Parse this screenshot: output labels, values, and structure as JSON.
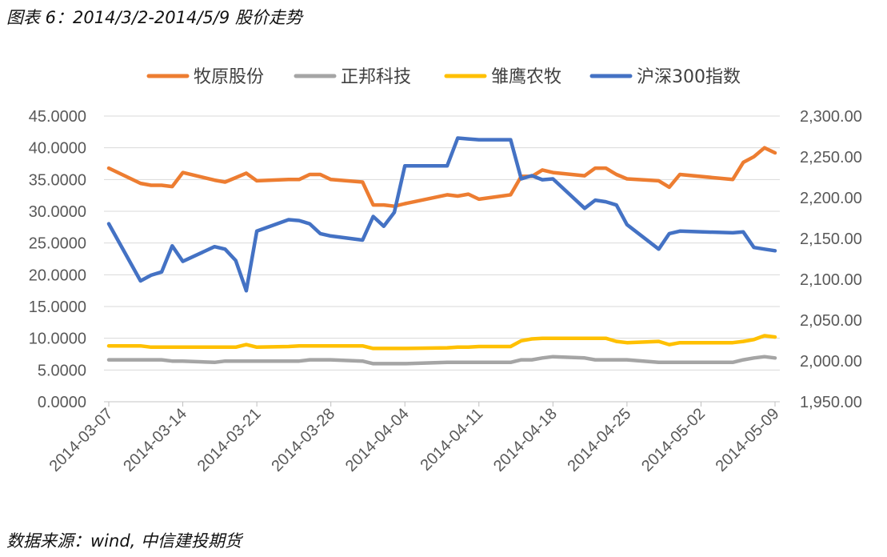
{
  "caption": "图表 6：2014/3/2-2014/5/9 股价走势",
  "source": "数据来源：wind,  中信建投期货",
  "chart_data": {
    "type": "line",
    "title": "",
    "xlabel": "",
    "ylabel": "",
    "y2label": "",
    "legend_position": "top",
    "grid": true,
    "ylim": [
      0,
      45
    ],
    "y2lim": [
      1950,
      2300
    ],
    "y_ticks": [
      "0.0000",
      "5.0000",
      "10.0000",
      "15.0000",
      "20.0000",
      "25.0000",
      "30.0000",
      "35.0000",
      "40.0000",
      "45.0000"
    ],
    "y2_ticks": [
      "1,950.00",
      "2,000.00",
      "2,050.00",
      "2,100.00",
      "2,150.00",
      "2,200.00",
      "2,250.00",
      "2,300.00"
    ],
    "x_ticks": [
      "2014-03-07",
      "2014-03-14",
      "2014-03-21",
      "2014-03-28",
      "2014-04-04",
      "2014-04-11",
      "2014-04-18",
      "2014-04-25",
      "2014-05-02",
      "2014-05-09"
    ],
    "dates": [
      "2014-03-07",
      "2014-03-10",
      "2014-03-11",
      "2014-03-12",
      "2014-03-13",
      "2014-03-14",
      "2014-03-17",
      "2014-03-18",
      "2014-03-19",
      "2014-03-20",
      "2014-03-21",
      "2014-03-24",
      "2014-03-25",
      "2014-03-26",
      "2014-03-27",
      "2014-03-28",
      "2014-03-31",
      "2014-04-01",
      "2014-04-02",
      "2014-04-03",
      "2014-04-04",
      "2014-04-08",
      "2014-04-09",
      "2014-04-10",
      "2014-04-11",
      "2014-04-14",
      "2014-04-15",
      "2014-04-16",
      "2014-04-17",
      "2014-04-18",
      "2014-04-21",
      "2014-04-22",
      "2014-04-23",
      "2014-04-24",
      "2014-04-25",
      "2014-04-28",
      "2014-04-29",
      "2014-04-30",
      "2014-05-05",
      "2014-05-06",
      "2014-05-07",
      "2014-05-08",
      "2014-05-09"
    ],
    "series": [
      {
        "name": "牧原股份",
        "color": "#ED7D31",
        "axis": "left",
        "values": [
          36.8,
          34.4,
          34.1,
          34.1,
          33.9,
          36.1,
          34.9,
          34.6,
          35.3,
          36.0,
          34.8,
          35.0,
          35.0,
          35.8,
          35.8,
          35.0,
          34.6,
          31.0,
          31.0,
          30.8,
          31.2,
          32.6,
          32.4,
          32.7,
          31.9,
          32.6,
          35.5,
          35.5,
          36.5,
          36.1,
          35.6,
          36.8,
          36.8,
          35.8,
          35.1,
          34.8,
          33.8,
          35.8,
          35.0,
          37.7,
          38.6,
          40.0,
          39.2
        ]
      },
      {
        "name": "正邦科技",
        "color": "#A5A5A5",
        "axis": "left",
        "values": [
          6.6,
          6.6,
          6.6,
          6.6,
          6.4,
          6.4,
          6.2,
          6.4,
          6.4,
          6.4,
          6.4,
          6.4,
          6.4,
          6.6,
          6.6,
          6.6,
          6.4,
          6.0,
          6.0,
          6.0,
          6.0,
          6.2,
          6.2,
          6.2,
          6.2,
          6.2,
          6.6,
          6.6,
          6.9,
          7.1,
          6.9,
          6.6,
          6.6,
          6.6,
          6.6,
          6.2,
          6.2,
          6.2,
          6.2,
          6.6,
          6.9,
          7.1,
          6.9
        ]
      },
      {
        "name": "雏鹰农牧",
        "color": "#FFC000",
        "axis": "left",
        "values": [
          8.8,
          8.8,
          8.6,
          8.6,
          8.6,
          8.6,
          8.6,
          8.6,
          8.6,
          9.0,
          8.6,
          8.7,
          8.8,
          8.8,
          8.8,
          8.8,
          8.8,
          8.4,
          8.4,
          8.4,
          8.4,
          8.5,
          8.6,
          8.6,
          8.7,
          8.7,
          9.6,
          9.9,
          10.0,
          10.0,
          10.0,
          10.0,
          10.0,
          9.5,
          9.3,
          9.5,
          9.0,
          9.3,
          9.3,
          9.5,
          9.8,
          10.4,
          10.2
        ]
      },
      {
        "name": "沪深300指数",
        "color": "#4472C4",
        "axis": "right",
        "values": [
          2168,
          2098,
          2105,
          2109,
          2141,
          2122,
          2140,
          2137,
          2123,
          2086,
          2159,
          2173,
          2172,
          2168,
          2156,
          2153,
          2148,
          2177,
          2165,
          2182,
          2239,
          2239,
          2273,
          2272,
          2271,
          2271,
          2223,
          2227,
          2222,
          2223,
          2187,
          2197,
          2195,
          2191,
          2167,
          2137,
          2156,
          2159,
          2157,
          2158,
          2139,
          2137,
          2135
        ]
      }
    ]
  }
}
